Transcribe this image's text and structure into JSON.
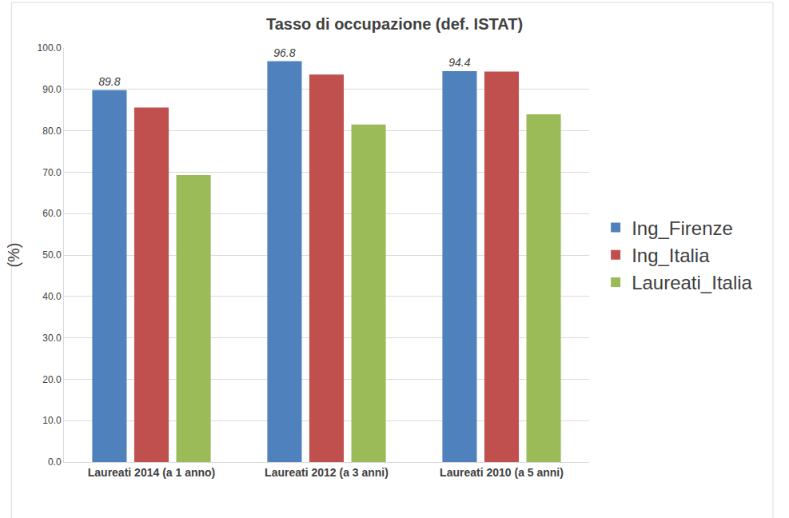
{
  "chart_data": {
    "type": "bar",
    "title": "Tasso di occupazione (def. ISTAT)",
    "y_label": "(%)",
    "categories": [
      "Laureati 2014 (a 1 anno)",
      "Laureati 2012 (a 3 anni)",
      "Laureati 2010 (a 5 anni)"
    ],
    "series": [
      {
        "name": "Ing_Firenze",
        "color": "#4F81BD",
        "values": [
          89.8,
          96.8,
          94.4
        ],
        "data_labels": true
      },
      {
        "name": "Ing_Italia",
        "color": "#C0504D",
        "values": [
          85.6,
          93.6,
          94.3
        ]
      },
      {
        "name": "Laureati_Italia",
        "color": "#9BBB59",
        "values": [
          69.3,
          81.5,
          84.0
        ]
      }
    ],
    "ylim": [
      0,
      100
    ],
    "yticks": [
      {
        "value": 0,
        "label": "0.0"
      },
      {
        "value": 10,
        "label": "10.0"
      },
      {
        "value": 20,
        "label": "20.0"
      },
      {
        "value": 30,
        "label": "30.0"
      },
      {
        "value": 40,
        "label": "40.0"
      },
      {
        "value": 50,
        "label": "50.0"
      },
      {
        "value": 60,
        "label": "60.0"
      },
      {
        "value": 70,
        "label": "70.0"
      },
      {
        "value": 80,
        "label": "80.0"
      },
      {
        "value": 90,
        "label": "90.0"
      },
      {
        "value": 100,
        "label": "100.0"
      }
    ],
    "grid": true,
    "legend": "right"
  }
}
